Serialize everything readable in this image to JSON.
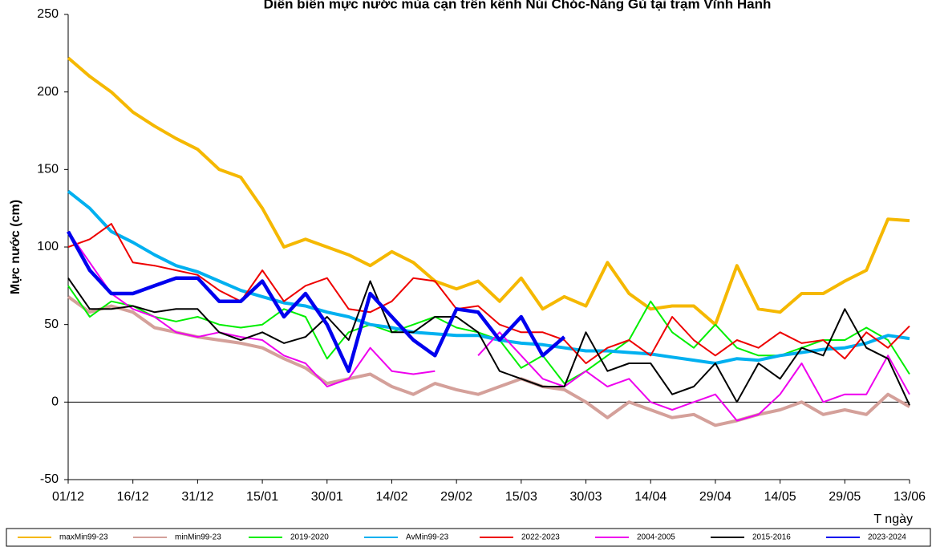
{
  "chart_data": {
    "type": "line",
    "title": "Diễn biến mực nước mùa cạn trên kênh Núi Chóc-Năng Gù tại trạm Vĩnh Hanh",
    "y_label": "Mực nước (cm)",
    "x_label": "T ngày",
    "x": [
      0,
      5,
      10,
      15,
      20,
      25,
      30,
      35,
      40,
      45,
      50,
      55,
      60,
      65,
      70,
      75,
      80,
      85,
      90,
      95,
      100,
      105,
      110,
      115,
      120,
      125,
      130,
      135,
      140,
      145,
      150,
      155,
      160,
      165,
      170,
      175,
      180,
      185,
      190,
      195
    ],
    "xlim": [
      0,
      195
    ],
    "xticks": [
      {
        "value": 0,
        "label": "01/12"
      },
      {
        "value": 15,
        "label": "16/12"
      },
      {
        "value": 30,
        "label": "31/12"
      },
      {
        "value": 45,
        "label": "15/01"
      },
      {
        "value": 60,
        "label": "30/01"
      },
      {
        "value": 75,
        "label": "14/02"
      },
      {
        "value": 90,
        "label": "29/02"
      },
      {
        "value": 105,
        "label": "15/03"
      },
      {
        "value": 120,
        "label": "30/03"
      },
      {
        "value": 135,
        "label": "14/04"
      },
      {
        "value": 150,
        "label": "29/04"
      },
      {
        "value": 165,
        "label": "14/05"
      },
      {
        "value": 180,
        "label": "29/05"
      },
      {
        "value": 195,
        "label": "13/06"
      }
    ],
    "ylim": [
      -50,
      250
    ],
    "yticks": [
      -50,
      0,
      50,
      100,
      150,
      200,
      250
    ],
    "grid": false,
    "series": [
      {
        "name": "maxMin99-23",
        "color": "#f5b800",
        "width": 4,
        "values": [
          222,
          210,
          200,
          187,
          178,
          170,
          163,
          150,
          145,
          125,
          100,
          105,
          100,
          95,
          88,
          97,
          90,
          78,
          73,
          78,
          65,
          80,
          60,
          68,
          62,
          90,
          70,
          60,
          62,
          62,
          50,
          88,
          60,
          58,
          70,
          70,
          78,
          85,
          118,
          117
        ]
      },
      {
        "name": "minMin99-23",
        "color": "#d4a09a",
        "width": 4,
        "values": [
          68,
          58,
          62,
          58,
          48,
          45,
          42,
          40,
          38,
          35,
          28,
          22,
          12,
          15,
          18,
          10,
          5,
          12,
          8,
          5,
          10,
          15,
          10,
          8,
          0,
          -10,
          0,
          -5,
          -10,
          -8,
          -15,
          -12,
          -8,
          -5,
          0,
          -8,
          -5,
          -8,
          5,
          -3
        ]
      },
      {
        "name": "2019-2020",
        "color": "#00ee00",
        "width": 2,
        "values": [
          75,
          55,
          65,
          62,
          55,
          52,
          55,
          50,
          48,
          50,
          60,
          55,
          28,
          45,
          50,
          45,
          50,
          55,
          48,
          45,
          40,
          22,
          30,
          12,
          20,
          30,
          40,
          65,
          45,
          35,
          50,
          35,
          30,
          30,
          35,
          40,
          40,
          48,
          40,
          18
        ]
      },
      {
        "name": "AvMin99-23",
        "color": "#00b0f0",
        "width": 4,
        "values": [
          136,
          125,
          110,
          103,
          95,
          88,
          84,
          78,
          72,
          68,
          64,
          62,
          58,
          55,
          50,
          48,
          45,
          44,
          43,
          43,
          40,
          38,
          37,
          35,
          33,
          33,
          32,
          31,
          29,
          27,
          25,
          28,
          27,
          30,
          32,
          34,
          35,
          38,
          43,
          41
        ]
      },
      {
        "name": "2022-2023",
        "color": "#ee0000",
        "width": 2,
        "values": [
          100,
          105,
          115,
          90,
          88,
          85,
          82,
          72,
          65,
          85,
          65,
          75,
          80,
          60,
          58,
          65,
          80,
          78,
          60,
          62,
          50,
          45,
          45,
          40,
          25,
          35,
          40,
          30,
          55,
          40,
          30,
          40,
          35,
          45,
          38,
          40,
          28,
          45,
          35,
          49
        ]
      },
      {
        "name": "2004-2005",
        "color": "#ee00ee",
        "width": 2,
        "values": [
          110,
          90,
          70,
          60,
          55,
          45,
          42,
          45,
          42,
          40,
          30,
          25,
          10,
          15,
          35,
          20,
          18,
          20,
          null,
          30,
          45,
          30,
          15,
          10,
          20,
          10,
          15,
          0,
          -5,
          0,
          5,
          -12,
          -8,
          5,
          25,
          0,
          5,
          5,
          30,
          5
        ]
      },
      {
        "name": "2015-2016",
        "color": "#000000",
        "width": 2,
        "values": [
          80,
          60,
          60,
          62,
          58,
          60,
          60,
          45,
          40,
          45,
          38,
          42,
          55,
          40,
          78,
          45,
          45,
          55,
          55,
          45,
          20,
          15,
          10,
          10,
          45,
          20,
          25,
          25,
          5,
          10,
          25,
          0,
          25,
          15,
          35,
          30,
          60,
          35,
          28,
          -2
        ]
      },
      {
        "name": "2023-2024",
        "color": "#0000ee",
        "width": 4.5,
        "values": [
          110,
          85,
          70,
          70,
          75,
          80,
          80,
          65,
          65,
          78,
          55,
          70,
          50,
          20,
          70,
          55,
          40,
          30,
          60,
          58,
          40,
          55,
          30,
          42,
          null,
          null,
          null,
          null,
          null,
          null,
          null,
          null,
          null,
          null,
          null,
          null,
          null,
          null,
          null,
          null
        ]
      }
    ]
  }
}
